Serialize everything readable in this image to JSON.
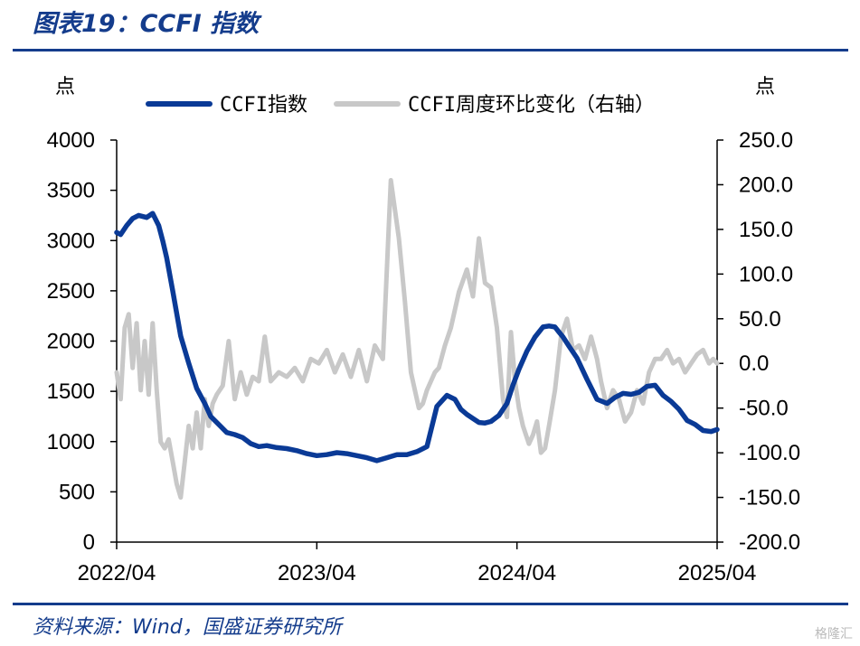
{
  "figure": {
    "title": "图表19：CCFI 指数",
    "source": "资料来源：Wind，国盛证券研究所",
    "watermark": "格隆汇"
  },
  "chart_data": {
    "type": "line",
    "title": "CCFI 指数",
    "left_unit": "点",
    "right_unit": "点",
    "x_ticks": [
      "2022/04",
      "2023/04",
      "2024/04",
      "2025/04"
    ],
    "x_range": [
      2022.25,
      2025.25
    ],
    "ylim_left": [
      0,
      4000
    ],
    "ylim_right": [
      -200,
      250
    ],
    "left_tick_labels": [
      "0",
      "500",
      "1000",
      "1500",
      "2000",
      "2500",
      "3000",
      "3500",
      "4000"
    ],
    "right_tick_labels": [
      "-200.0",
      "-150.0",
      "-100.0",
      "-50.0",
      "0.0",
      "50.0",
      "100.0",
      "150.0",
      "200.0",
      "250.0"
    ],
    "legend_position": "top-center",
    "colors": {
      "ccfi": "#0a3a96",
      "wow": "#c8c8c8",
      "accent": "#143c8c"
    },
    "series": [
      {
        "name": "CCFI指数",
        "axis": "left",
        "x": [
          2022.25,
          2022.27,
          2022.3,
          2022.33,
          2022.36,
          2022.4,
          2022.43,
          2022.46,
          2022.48,
          2022.5,
          2022.53,
          2022.57,
          2022.61,
          2022.65,
          2022.69,
          2022.72,
          2022.76,
          2022.8,
          2022.84,
          2022.88,
          2022.92,
          2022.96,
          2023.0,
          2023.05,
          2023.1,
          2023.15,
          2023.2,
          2023.25,
          2023.3,
          2023.35,
          2023.4,
          2023.45,
          2023.5,
          2023.55,
          2023.6,
          2023.65,
          2023.7,
          2023.75,
          2023.8,
          2023.85,
          2023.9,
          2023.94,
          2023.97,
          2024.0,
          2024.03,
          2024.06,
          2024.09,
          2024.12,
          2024.16,
          2024.2,
          2024.23,
          2024.26,
          2024.3,
          2024.34,
          2024.38,
          2024.41,
          2024.44,
          2024.46,
          2024.48,
          2024.51,
          2024.55,
          2024.6,
          2024.65,
          2024.7,
          2024.74,
          2024.78,
          2024.82,
          2024.86,
          2024.9,
          2024.94,
          2024.98,
          2025.02,
          2025.06,
          2025.1,
          2025.14,
          2025.18,
          2025.22,
          2025.25
        ],
        "values": [
          3080,
          3060,
          3150,
          3220,
          3250,
          3230,
          3270,
          3150,
          3000,
          2830,
          2500,
          2050,
          1780,
          1530,
          1380,
          1250,
          1170,
          1090,
          1070,
          1040,
          980,
          950,
          960,
          940,
          930,
          910,
          880,
          860,
          870,
          890,
          880,
          860,
          840,
          810,
          840,
          870,
          870,
          900,
          950,
          1350,
          1460,
          1420,
          1320,
          1270,
          1230,
          1190,
          1185,
          1200,
          1260,
          1380,
          1560,
          1720,
          1900,
          2040,
          2140,
          2150,
          2140,
          2090,
          2040,
          1950,
          1830,
          1620,
          1420,
          1380,
          1440,
          1480,
          1470,
          1490,
          1550,
          1560,
          1460,
          1400,
          1320,
          1210,
          1170,
          1110,
          1100,
          1120
        ]
      },
      {
        "name": "CCFI周度环比变化（右轴）",
        "axis": "right",
        "x": [
          2022.25,
          2022.27,
          2022.29,
          2022.31,
          2022.33,
          2022.35,
          2022.37,
          2022.39,
          2022.41,
          2022.43,
          2022.45,
          2022.47,
          2022.49,
          2022.51,
          2022.53,
          2022.55,
          2022.57,
          2022.59,
          2022.61,
          2022.63,
          2022.65,
          2022.67,
          2022.69,
          2022.71,
          2022.73,
          2022.75,
          2022.78,
          2022.81,
          2022.84,
          2022.87,
          2022.9,
          2022.93,
          2022.96,
          2022.99,
          2023.02,
          2023.06,
          2023.1,
          2023.14,
          2023.18,
          2023.22,
          2023.26,
          2023.3,
          2023.34,
          2023.38,
          2023.42,
          2023.46,
          2023.5,
          2023.54,
          2023.58,
          2023.62,
          2023.66,
          2023.69,
          2023.72,
          2023.74,
          2023.76,
          2023.78,
          2023.8,
          2023.82,
          2023.84,
          2023.86,
          2023.89,
          2023.92,
          2023.96,
          2024.0,
          2024.03,
          2024.06,
          2024.09,
          2024.12,
          2024.15,
          2024.18,
          2024.2,
          2024.22,
          2024.24,
          2024.26,
          2024.28,
          2024.31,
          2024.33,
          2024.35,
          2024.37,
          2024.39,
          2024.41,
          2024.44,
          2024.47,
          2024.5,
          2024.53,
          2024.56,
          2024.59,
          2024.62,
          2024.65,
          2024.67,
          2024.7,
          2024.73,
          2024.76,
          2024.79,
          2024.82,
          2024.85,
          2024.88,
          2024.91,
          2024.94,
          2024.97,
          2025.0,
          2025.03,
          2025.06,
          2025.09,
          2025.12,
          2025.15,
          2025.18,
          2025.21,
          2025.23,
          2025.25
        ],
        "values": [
          -10,
          -40,
          40,
          55,
          -5,
          45,
          -30,
          25,
          -35,
          45,
          -30,
          -88,
          -95,
          -85,
          -110,
          -135,
          -150,
          -110,
          -70,
          -95,
          -55,
          -95,
          -40,
          -70,
          -45,
          -35,
          -25,
          25,
          -40,
          -10,
          -35,
          -15,
          -20,
          30,
          -20,
          -10,
          -15,
          -5,
          -20,
          5,
          0,
          15,
          -10,
          10,
          -15,
          15,
          -20,
          20,
          5,
          205,
          140,
          70,
          -10,
          -30,
          -50,
          -45,
          -30,
          -20,
          -10,
          -5,
          20,
          40,
          80,
          105,
          75,
          140,
          90,
          85,
          40,
          -40,
          -60,
          35,
          -20,
          -50,
          -70,
          -90,
          -80,
          -65,
          -100,
          -95,
          -70,
          -30,
          30,
          50,
          15,
          20,
          5,
          30,
          5,
          -20,
          -50,
          -30,
          -40,
          -65,
          -55,
          -30,
          -45,
          -10,
          5,
          5,
          15,
          0,
          5,
          -10,
          0,
          10,
          15,
          0,
          5,
          0
        ]
      }
    ]
  }
}
